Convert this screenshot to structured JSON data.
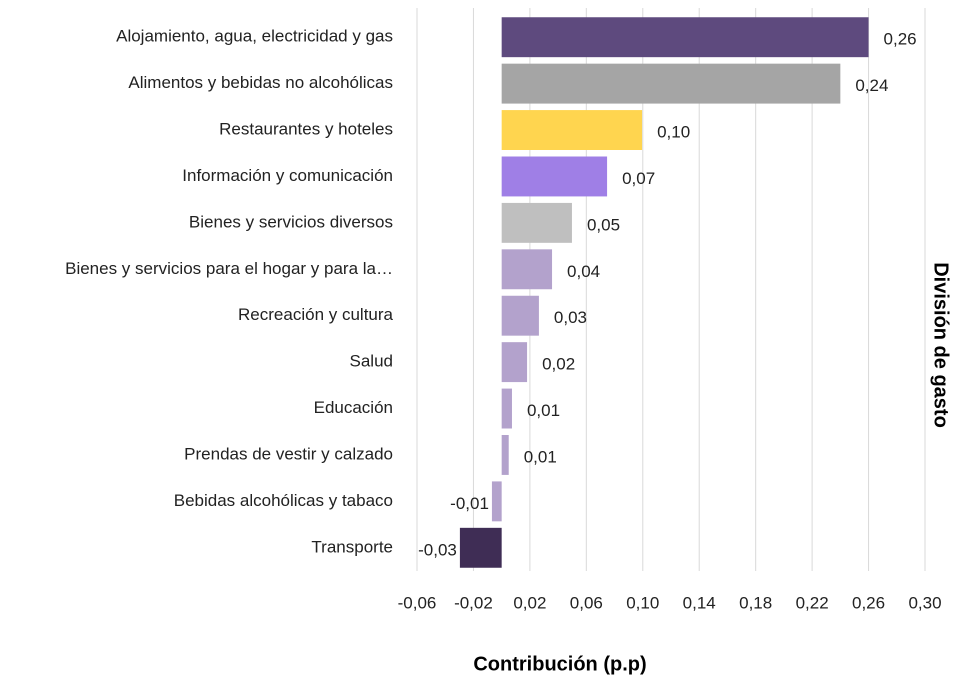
{
  "chart_data": {
    "type": "barh",
    "xlabel": "Contribución (p.p)",
    "ylabel": "División de gasto",
    "categories": [
      "Alojamiento, agua, electricidad y gas",
      "Alimentos y bebidas no alcohólicas",
      "Restaurantes y hoteles",
      "Información y comunicación",
      "Bienes y servicios diversos",
      "Bienes y servicios para el hogar y para la…",
      "Recreación y cultura",
      "Salud",
      "Educación",
      "Prendas de vestir y calzado",
      "Bebidas alcohólicas y tabaco",
      "Transporte"
    ],
    "values": [
      0.26,
      0.24,
      0.0995,
      0.0747,
      0.0498,
      0.0357,
      0.0264,
      0.018,
      0.0073,
      0.005,
      -0.0069,
      -0.0296
    ],
    "value_labels": [
      "0,26",
      "0,24",
      "0,10",
      "0,07",
      "0,05",
      "0,04",
      "0,03",
      "0,02",
      "0,01",
      "0,01",
      "-0,01",
      "-0,03"
    ],
    "colors": [
      "#5e4a7e",
      "#a5a5a5",
      "#ffd54f",
      "#9f7fe6",
      "#bfbfbf",
      "#b3a2cc",
      "#b3a2cc",
      "#b3a2cc",
      "#b3a2cc",
      "#b3a2cc",
      "#b3a2cc",
      "#3f2d55"
    ],
    "xlim": [
      -0.06,
      0.3
    ],
    "xticks": [
      {
        "value": -0.06,
        "label": "-0,06"
      },
      {
        "value": -0.02,
        "label": "-0,02"
      },
      {
        "value": 0.02,
        "label": "0,02"
      },
      {
        "value": 0.06,
        "label": "0,06"
      },
      {
        "value": 0.1,
        "label": "0,10"
      },
      {
        "value": 0.14,
        "label": "0,14"
      },
      {
        "value": 0.18,
        "label": "0,18"
      },
      {
        "value": 0.22,
        "label": "0,22"
      },
      {
        "value": 0.26,
        "label": "0,26"
      },
      {
        "value": 0.3,
        "label": "0,30"
      }
    ],
    "grid": true
  }
}
